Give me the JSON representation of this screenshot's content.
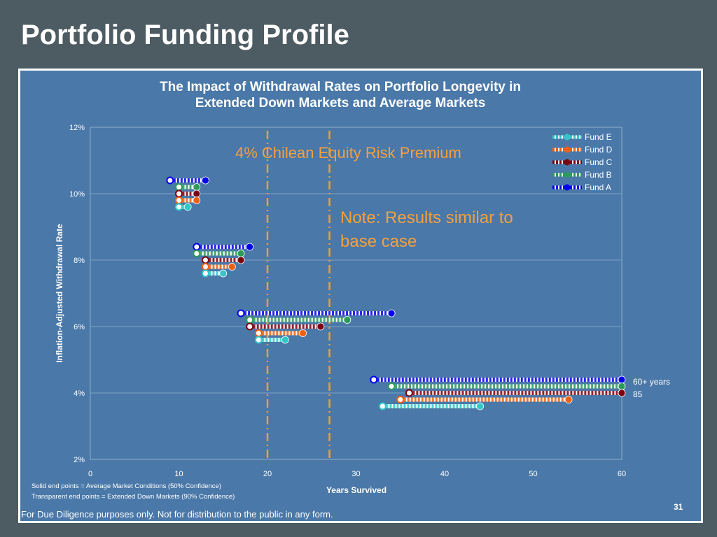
{
  "slide": {
    "title": "Portfolio Funding Profile",
    "footer": "For Due Diligence purposes only. Not for distribution to the public in any form.",
    "page_number": "31"
  },
  "colors": {
    "background": "#4d5b62",
    "panel": "#4a78a8",
    "plot_area": "#4a78a8",
    "annotation": "#f4a040",
    "reference_line": "#f0a030"
  },
  "chart_data": {
    "type": "range",
    "title": "The Impact of Withdrawal Rates on Portfolio Longevity in Extended Down Markets and Average Markets",
    "title_lines": [
      "The Impact of Withdrawal Rates on Portfolio Longevity in",
      "Extended Down Markets and Average Markets"
    ],
    "xlabel": "Years Survived",
    "ylabel": "Inflation-Adjusted Withdrawal Rate",
    "xlim": [
      0,
      60
    ],
    "ylim": [
      2,
      12
    ],
    "x_ticks": [
      "0",
      "10",
      "20",
      "30",
      "40",
      "50",
      "60"
    ],
    "y_ticks": [
      "2%",
      "4%",
      "6%",
      "8%",
      "10%",
      "12%"
    ],
    "grid": "horizontal",
    "legend_position": "top-right",
    "reference_lines_x": [
      20,
      27
    ],
    "annotations": [
      "4% Chilean Equity Risk Premium",
      "Note: Results similar to base case",
      "60+ years",
      "85"
    ],
    "notes": [
      "Solid end points = Average Market Conditions (50% Confidence)",
      "Transparent end points = Extended Down Markets (90% Confidence)"
    ],
    "series": [
      {
        "name": "Fund A",
        "color": "#0000ee",
        "points": [
          {
            "rate": 10.4,
            "down": 9,
            "avg": 13
          },
          {
            "rate": 8.4,
            "down": 12,
            "avg": 18
          },
          {
            "rate": 6.4,
            "down": 17,
            "avg": 34
          },
          {
            "rate": 4.4,
            "down": 32,
            "avg": 60
          }
        ]
      },
      {
        "name": "Fund B",
        "color": "#2e9a5a",
        "points": [
          {
            "rate": 10.2,
            "down": 10,
            "avg": 12
          },
          {
            "rate": 8.2,
            "down": 12,
            "avg": 17
          },
          {
            "rate": 6.2,
            "down": 18,
            "avg": 29
          },
          {
            "rate": 4.2,
            "down": 34,
            "avg": 60
          }
        ]
      },
      {
        "name": "Fund C",
        "color": "#7a0010",
        "points": [
          {
            "rate": 10.0,
            "down": 10,
            "avg": 12
          },
          {
            "rate": 8.0,
            "down": 13,
            "avg": 17
          },
          {
            "rate": 6.0,
            "down": 18,
            "avg": 26
          },
          {
            "rate": 4.0,
            "down": 36,
            "avg": 60
          }
        ]
      },
      {
        "name": "Fund D",
        "color": "#f06010",
        "points": [
          {
            "rate": 9.8,
            "down": 10,
            "avg": 12
          },
          {
            "rate": 7.8,
            "down": 13,
            "avg": 16
          },
          {
            "rate": 5.8,
            "down": 19,
            "avg": 24
          },
          {
            "rate": 3.8,
            "down": 35,
            "avg": 54
          }
        ]
      },
      {
        "name": "Fund E",
        "color": "#30c8c8",
        "points": [
          {
            "rate": 9.6,
            "down": 10,
            "avg": 11
          },
          {
            "rate": 7.6,
            "down": 13,
            "avg": 15
          },
          {
            "rate": 5.6,
            "down": 19,
            "avg": 22
          },
          {
            "rate": 3.6,
            "down": 33,
            "avg": 44
          }
        ]
      }
    ],
    "legend_order": [
      "Fund E",
      "Fund D",
      "Fund C",
      "Fund B",
      "Fund A"
    ]
  }
}
